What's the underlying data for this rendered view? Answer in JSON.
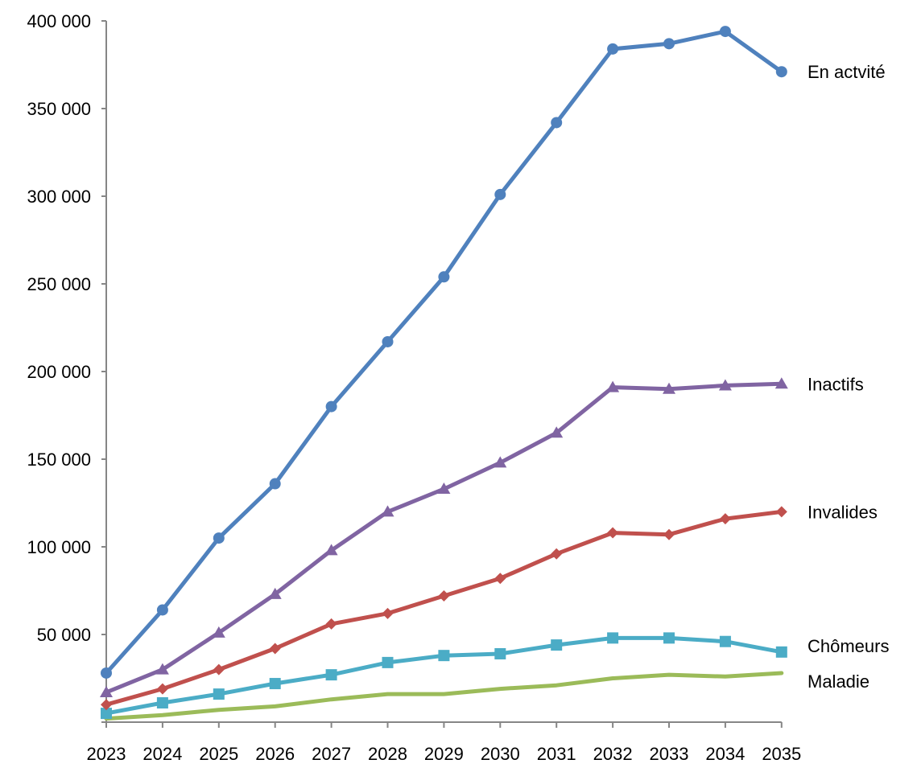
{
  "chart_data": {
    "type": "line",
    "title": "",
    "xlabel": "",
    "ylabel": "",
    "x": [
      "2023",
      "2024",
      "2025",
      "2026",
      "2027",
      "2028",
      "2029",
      "2030",
      "2031",
      "2032",
      "2033",
      "2034",
      "2035"
    ],
    "ylim": [
      0,
      400000
    ],
    "yticks": [
      50000,
      100000,
      150000,
      200000,
      250000,
      300000,
      350000,
      400000
    ],
    "ytick_labels": [
      "50 000",
      "100 000",
      "150 000",
      "200 000",
      "250 000",
      "300 000",
      "350 000",
      "400 000"
    ],
    "grid": false,
    "legend": "inline labels at right end of each series",
    "series": [
      {
        "name": "En actvité",
        "color": "#4F81BD",
        "marker": "circle",
        "values": [
          28000,
          64000,
          105000,
          136000,
          180000,
          217000,
          254000,
          301000,
          342000,
          384000,
          387000,
          394000,
          371000
        ]
      },
      {
        "name": "Inactifs",
        "color": "#8064A2",
        "marker": "triangle",
        "values": [
          17000,
          30000,
          51000,
          73000,
          98000,
          120000,
          133000,
          148000,
          165000,
          191000,
          190000,
          192000,
          193000
        ]
      },
      {
        "name": "Invalides",
        "color": "#C0504D",
        "marker": "diamond",
        "values": [
          10000,
          19000,
          30000,
          42000,
          56000,
          62000,
          72000,
          82000,
          96000,
          108000,
          107000,
          116000,
          120000
        ]
      },
      {
        "name": "Chômeurs",
        "color": "#4BACC6",
        "marker": "square",
        "values": [
          5000,
          11000,
          16000,
          22000,
          27000,
          34000,
          38000,
          39000,
          44000,
          48000,
          48000,
          46000,
          40000
        ]
      },
      {
        "name": "Maladie",
        "color": "#9BBB59",
        "marker": "none",
        "values": [
          2000,
          4000,
          7000,
          9000,
          13000,
          16000,
          16000,
          19000,
          21000,
          25000,
          27000,
          26000,
          28000
        ]
      }
    ]
  }
}
